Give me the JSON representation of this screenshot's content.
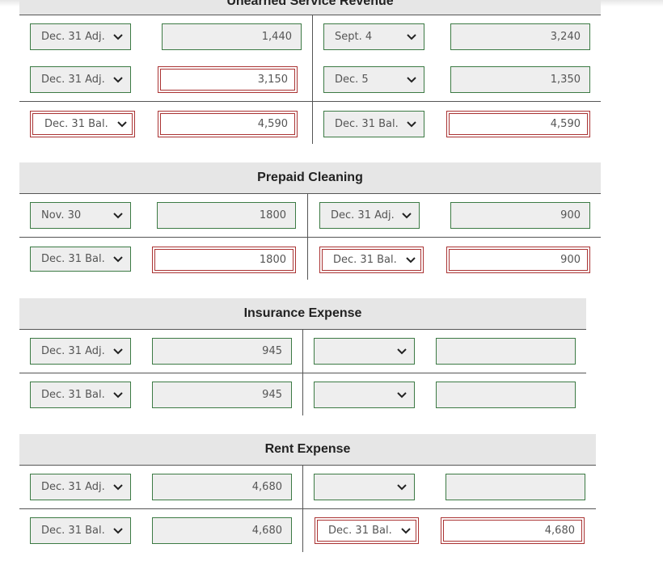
{
  "accounts": {
    "unearned": {
      "title": "Unearned Service Revenue",
      "rows": [
        {
          "left_date": "Dec. 31 Adj.",
          "left_amount": "1,440",
          "right_date": "Sept. 4",
          "right_amount": "3,240"
        },
        {
          "left_date": "Dec. 31 Adj.",
          "left_amount": "3,150",
          "right_date": "Dec. 5",
          "right_amount": "1,350"
        },
        {
          "left_date": "Dec. 31 Bal.",
          "left_amount": "4,590",
          "right_date": "Dec. 31 Bal.",
          "right_amount": "4,590"
        }
      ]
    },
    "prepaid_cleaning": {
      "title": "Prepaid Cleaning",
      "rows": [
        {
          "left_date": "Nov. 30",
          "left_amount": "1800",
          "right_date": "Dec. 31 Adj.",
          "right_amount": "900"
        },
        {
          "left_date": "Dec. 31 Bal.",
          "left_amount": "1800",
          "right_date": "Dec. 31 Bal.",
          "right_amount": "900"
        }
      ]
    },
    "insurance_expense": {
      "title": "Insurance Expense",
      "rows": [
        {
          "left_date": "Dec. 31 Adj.",
          "left_amount": "945",
          "right_date": "",
          "right_amount": ""
        },
        {
          "left_date": "Dec. 31 Bal.",
          "left_amount": "945",
          "right_date": "",
          "right_amount": ""
        }
      ]
    },
    "rent_expense": {
      "title": "Rent Expense",
      "rows": [
        {
          "left_date": "Dec. 31 Adj.",
          "left_amount": "4,680",
          "right_date": "",
          "right_amount": ""
        },
        {
          "left_date": "Dec. 31 Bal.",
          "left_amount": "4,680",
          "right_date": "Dec. 31 Bal.",
          "right_amount": "4,680"
        }
      ]
    }
  },
  "icons": {
    "dropdown": "chevron-down-icon"
  },
  "colors": {
    "valid_border": "#3c7a44",
    "error_border": "#aa3333",
    "field_fill": "#eeeeee",
    "header_fill": "#e6e6e6"
  }
}
